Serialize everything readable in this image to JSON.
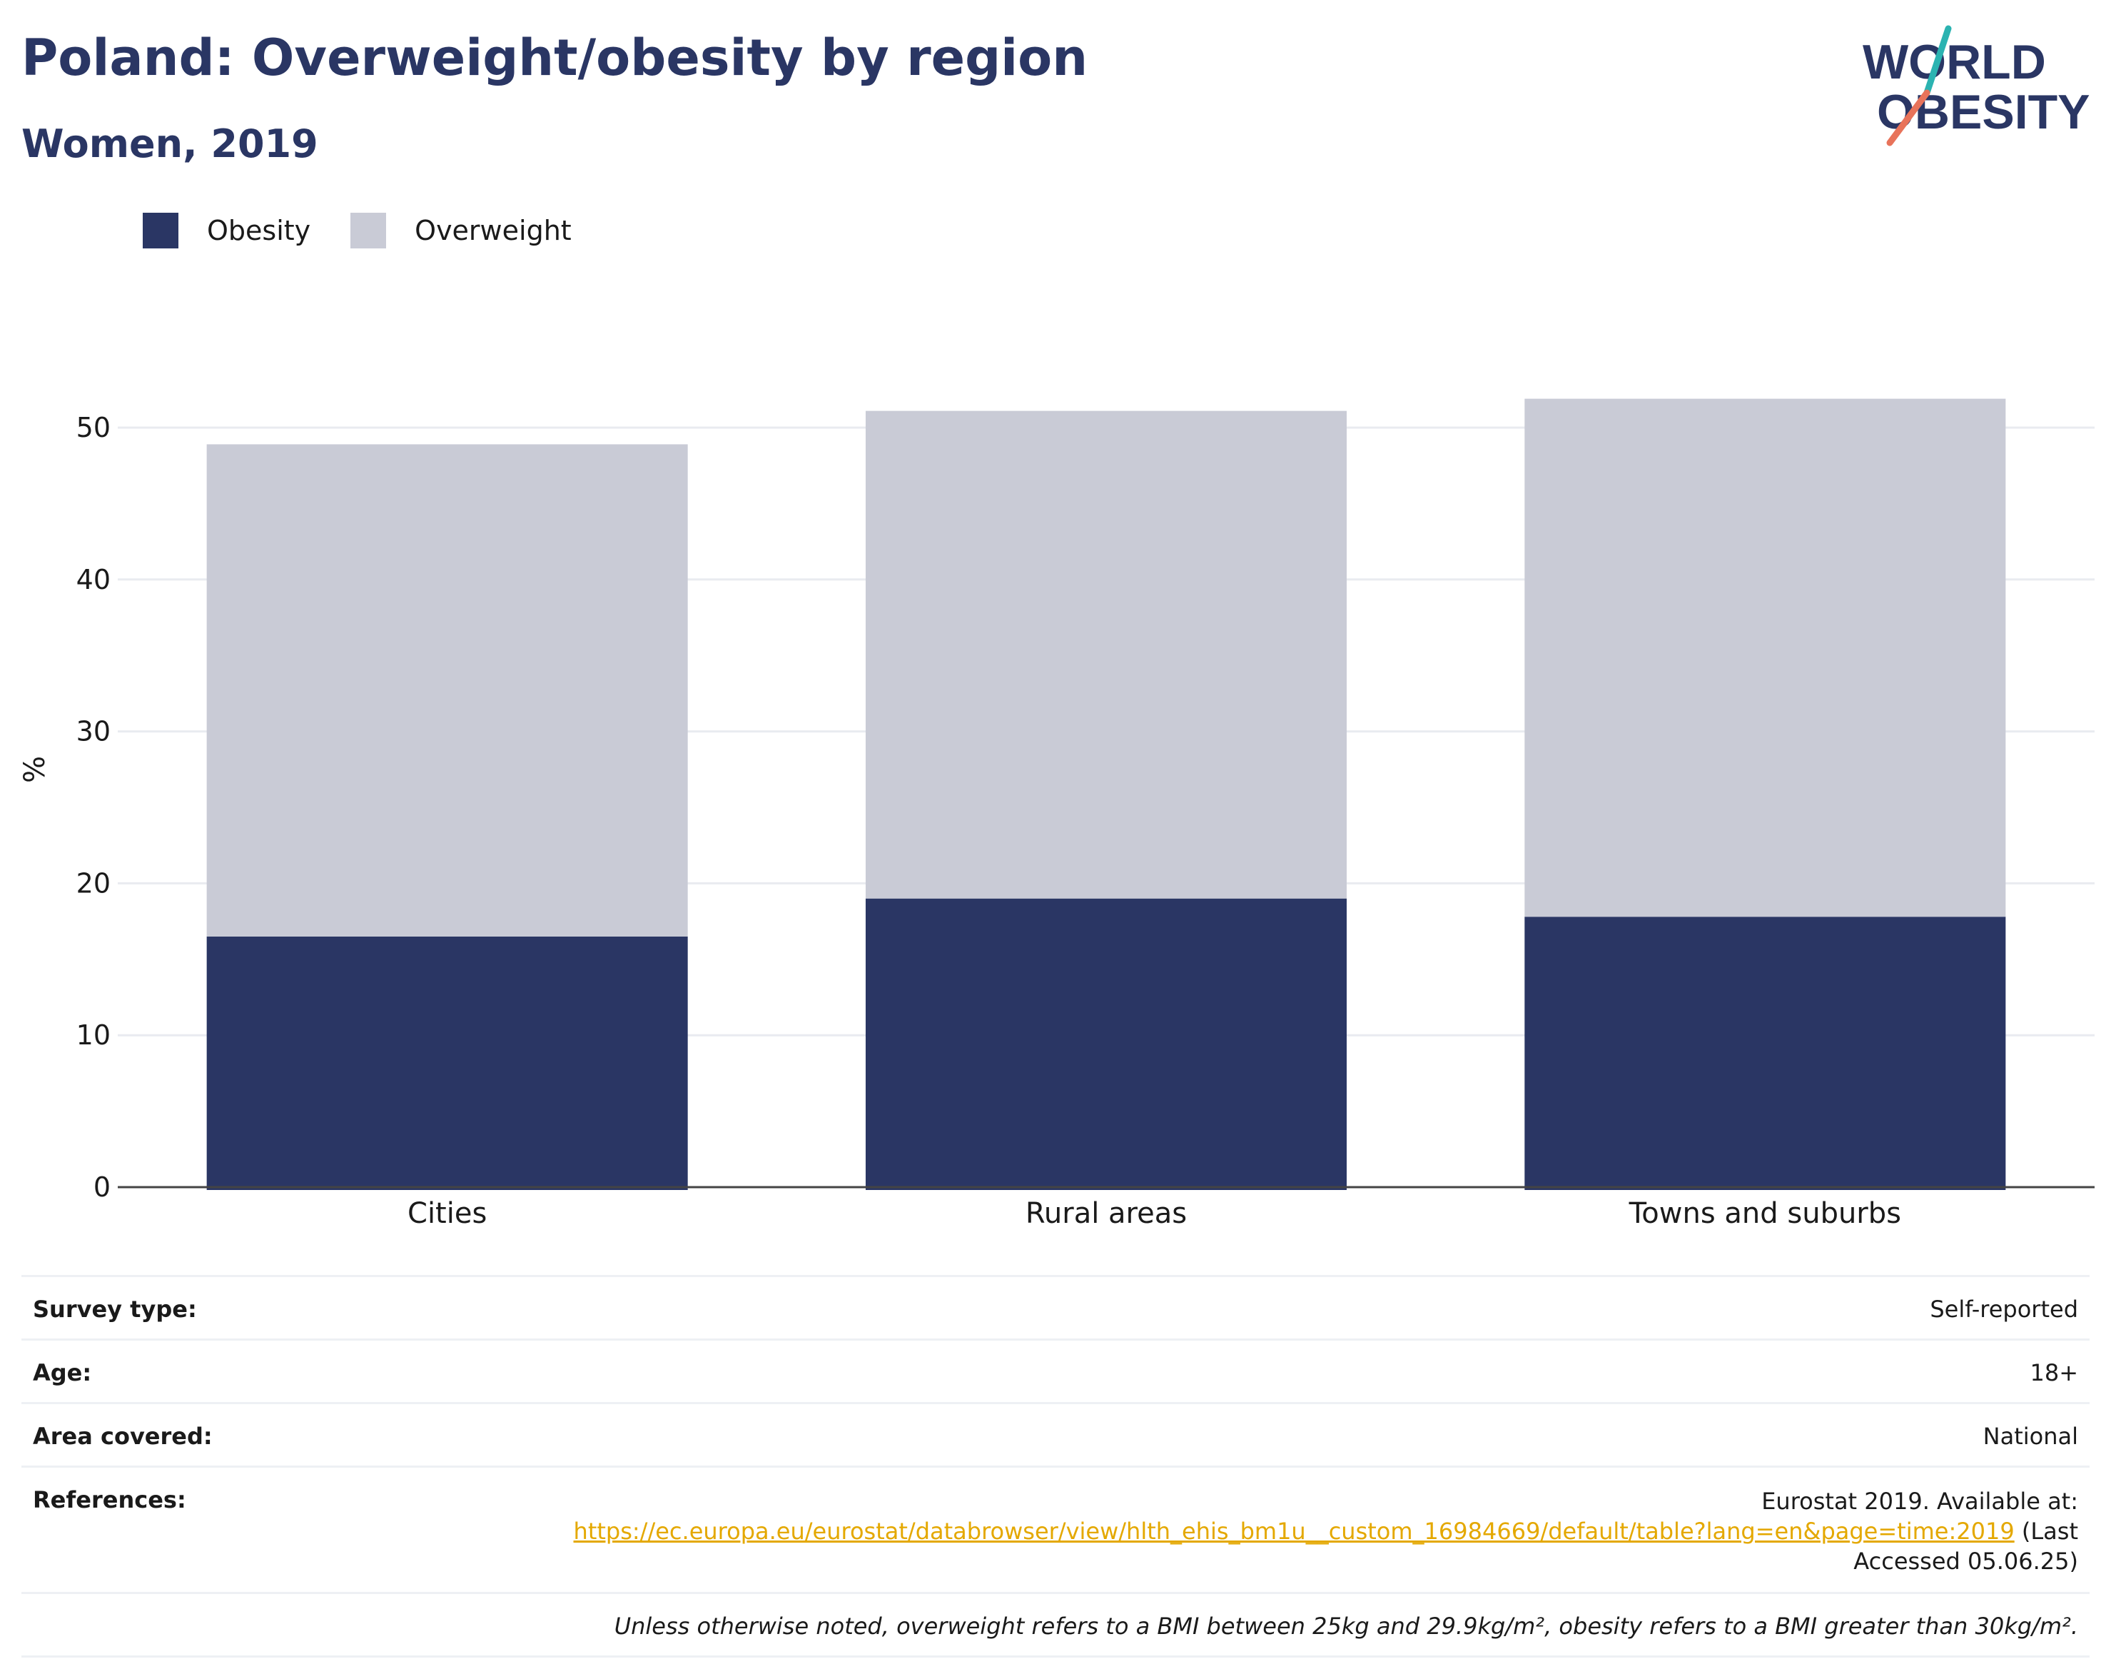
{
  "header": {
    "title": "Poland: Overweight/obesity by region",
    "subtitle": "Women, 2019"
  },
  "logo": {
    "line1": "WORLD",
    "line2": "OBESITY",
    "colors": {
      "text": "#2a3664",
      "slash_top": "#2bb3b1",
      "slash_bottom": "#e8735a"
    }
  },
  "legend": [
    {
      "label": "Obesity",
      "color": "#2a3664"
    },
    {
      "label": "Overweight",
      "color": "#c9cbd6"
    }
  ],
  "chart_data": {
    "type": "bar",
    "stacked": true,
    "categories": [
      "Cities",
      "Rural areas",
      "Towns and suburbs"
    ],
    "series": [
      {
        "name": "Obesity",
        "values": [
          16.5,
          19.0,
          17.8
        ],
        "color": "#2a3664"
      },
      {
        "name": "Overweight",
        "values": [
          32.4,
          32.1,
          34.1
        ],
        "color": "#c9cbd6"
      }
    ],
    "ylabel": "%",
    "ylim": [
      0,
      55
    ],
    "yticks": [
      0,
      10,
      20,
      30,
      40,
      50
    ],
    "grid": true,
    "legend_position": "top-left"
  },
  "info": {
    "survey_type": {
      "label": "Survey type:",
      "value": "Self-reported"
    },
    "age": {
      "label": "Age:",
      "value": "18+"
    },
    "area": {
      "label": "Area covered:",
      "value": "National"
    },
    "references": {
      "label": "References:",
      "line1": "Eurostat 2019. Available at:",
      "link": "https://ec.europa.eu/eurostat/databrowser/view/hlth_ehis_bm1u__custom_16984669/default/table?lang=en&page=time:2019",
      "after_link": " (Last",
      "line3": "Accessed 05.06.25)"
    },
    "note": "Unless otherwise noted, overweight refers to a BMI between 25kg and 29.9kg/m², obesity refers to a BMI greater than 30kg/m²."
  }
}
